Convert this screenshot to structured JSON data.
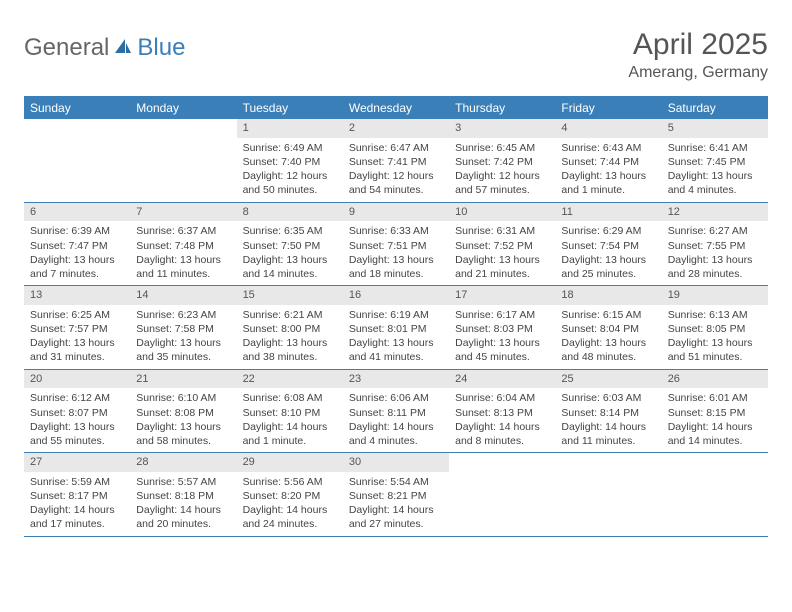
{
  "logo": {
    "part1": "General",
    "part2": "Blue"
  },
  "title": "April 2025",
  "location": "Amerang, Germany",
  "colors": {
    "header_bg": "#3b7fb8",
    "header_text": "#ffffff",
    "daynum_bg": "#e8e8e8",
    "border": "#3b7fb8",
    "body_text": "#444444",
    "title_text": "#555555"
  },
  "day_headers": [
    "Sunday",
    "Monday",
    "Tuesday",
    "Wednesday",
    "Thursday",
    "Friday",
    "Saturday"
  ],
  "weeks": [
    [
      {
        "empty": true
      },
      {
        "empty": true
      },
      {
        "num": "1",
        "sunrise": "Sunrise: 6:49 AM",
        "sunset": "Sunset: 7:40 PM",
        "daylight": "Daylight: 12 hours and 50 minutes."
      },
      {
        "num": "2",
        "sunrise": "Sunrise: 6:47 AM",
        "sunset": "Sunset: 7:41 PM",
        "daylight": "Daylight: 12 hours and 54 minutes."
      },
      {
        "num": "3",
        "sunrise": "Sunrise: 6:45 AM",
        "sunset": "Sunset: 7:42 PM",
        "daylight": "Daylight: 12 hours and 57 minutes."
      },
      {
        "num": "4",
        "sunrise": "Sunrise: 6:43 AM",
        "sunset": "Sunset: 7:44 PM",
        "daylight": "Daylight: 13 hours and 1 minute."
      },
      {
        "num": "5",
        "sunrise": "Sunrise: 6:41 AM",
        "sunset": "Sunset: 7:45 PM",
        "daylight": "Daylight: 13 hours and 4 minutes."
      }
    ],
    [
      {
        "num": "6",
        "sunrise": "Sunrise: 6:39 AM",
        "sunset": "Sunset: 7:47 PM",
        "daylight": "Daylight: 13 hours and 7 minutes."
      },
      {
        "num": "7",
        "sunrise": "Sunrise: 6:37 AM",
        "sunset": "Sunset: 7:48 PM",
        "daylight": "Daylight: 13 hours and 11 minutes."
      },
      {
        "num": "8",
        "sunrise": "Sunrise: 6:35 AM",
        "sunset": "Sunset: 7:50 PM",
        "daylight": "Daylight: 13 hours and 14 minutes."
      },
      {
        "num": "9",
        "sunrise": "Sunrise: 6:33 AM",
        "sunset": "Sunset: 7:51 PM",
        "daylight": "Daylight: 13 hours and 18 minutes."
      },
      {
        "num": "10",
        "sunrise": "Sunrise: 6:31 AM",
        "sunset": "Sunset: 7:52 PM",
        "daylight": "Daylight: 13 hours and 21 minutes."
      },
      {
        "num": "11",
        "sunrise": "Sunrise: 6:29 AM",
        "sunset": "Sunset: 7:54 PM",
        "daylight": "Daylight: 13 hours and 25 minutes."
      },
      {
        "num": "12",
        "sunrise": "Sunrise: 6:27 AM",
        "sunset": "Sunset: 7:55 PM",
        "daylight": "Daylight: 13 hours and 28 minutes."
      }
    ],
    [
      {
        "num": "13",
        "sunrise": "Sunrise: 6:25 AM",
        "sunset": "Sunset: 7:57 PM",
        "daylight": "Daylight: 13 hours and 31 minutes."
      },
      {
        "num": "14",
        "sunrise": "Sunrise: 6:23 AM",
        "sunset": "Sunset: 7:58 PM",
        "daylight": "Daylight: 13 hours and 35 minutes."
      },
      {
        "num": "15",
        "sunrise": "Sunrise: 6:21 AM",
        "sunset": "Sunset: 8:00 PM",
        "daylight": "Daylight: 13 hours and 38 minutes."
      },
      {
        "num": "16",
        "sunrise": "Sunrise: 6:19 AM",
        "sunset": "Sunset: 8:01 PM",
        "daylight": "Daylight: 13 hours and 41 minutes."
      },
      {
        "num": "17",
        "sunrise": "Sunrise: 6:17 AM",
        "sunset": "Sunset: 8:03 PM",
        "daylight": "Daylight: 13 hours and 45 minutes."
      },
      {
        "num": "18",
        "sunrise": "Sunrise: 6:15 AM",
        "sunset": "Sunset: 8:04 PM",
        "daylight": "Daylight: 13 hours and 48 minutes."
      },
      {
        "num": "19",
        "sunrise": "Sunrise: 6:13 AM",
        "sunset": "Sunset: 8:05 PM",
        "daylight": "Daylight: 13 hours and 51 minutes."
      }
    ],
    [
      {
        "num": "20",
        "sunrise": "Sunrise: 6:12 AM",
        "sunset": "Sunset: 8:07 PM",
        "daylight": "Daylight: 13 hours and 55 minutes."
      },
      {
        "num": "21",
        "sunrise": "Sunrise: 6:10 AM",
        "sunset": "Sunset: 8:08 PM",
        "daylight": "Daylight: 13 hours and 58 minutes."
      },
      {
        "num": "22",
        "sunrise": "Sunrise: 6:08 AM",
        "sunset": "Sunset: 8:10 PM",
        "daylight": "Daylight: 14 hours and 1 minute."
      },
      {
        "num": "23",
        "sunrise": "Sunrise: 6:06 AM",
        "sunset": "Sunset: 8:11 PM",
        "daylight": "Daylight: 14 hours and 4 minutes."
      },
      {
        "num": "24",
        "sunrise": "Sunrise: 6:04 AM",
        "sunset": "Sunset: 8:13 PM",
        "daylight": "Daylight: 14 hours and 8 minutes."
      },
      {
        "num": "25",
        "sunrise": "Sunrise: 6:03 AM",
        "sunset": "Sunset: 8:14 PM",
        "daylight": "Daylight: 14 hours and 11 minutes."
      },
      {
        "num": "26",
        "sunrise": "Sunrise: 6:01 AM",
        "sunset": "Sunset: 8:15 PM",
        "daylight": "Daylight: 14 hours and 14 minutes."
      }
    ],
    [
      {
        "num": "27",
        "sunrise": "Sunrise: 5:59 AM",
        "sunset": "Sunset: 8:17 PM",
        "daylight": "Daylight: 14 hours and 17 minutes."
      },
      {
        "num": "28",
        "sunrise": "Sunrise: 5:57 AM",
        "sunset": "Sunset: 8:18 PM",
        "daylight": "Daylight: 14 hours and 20 minutes."
      },
      {
        "num": "29",
        "sunrise": "Sunrise: 5:56 AM",
        "sunset": "Sunset: 8:20 PM",
        "daylight": "Daylight: 14 hours and 24 minutes."
      },
      {
        "num": "30",
        "sunrise": "Sunrise: 5:54 AM",
        "sunset": "Sunset: 8:21 PM",
        "daylight": "Daylight: 14 hours and 27 minutes."
      },
      {
        "empty": true
      },
      {
        "empty": true
      },
      {
        "empty": true
      }
    ]
  ]
}
